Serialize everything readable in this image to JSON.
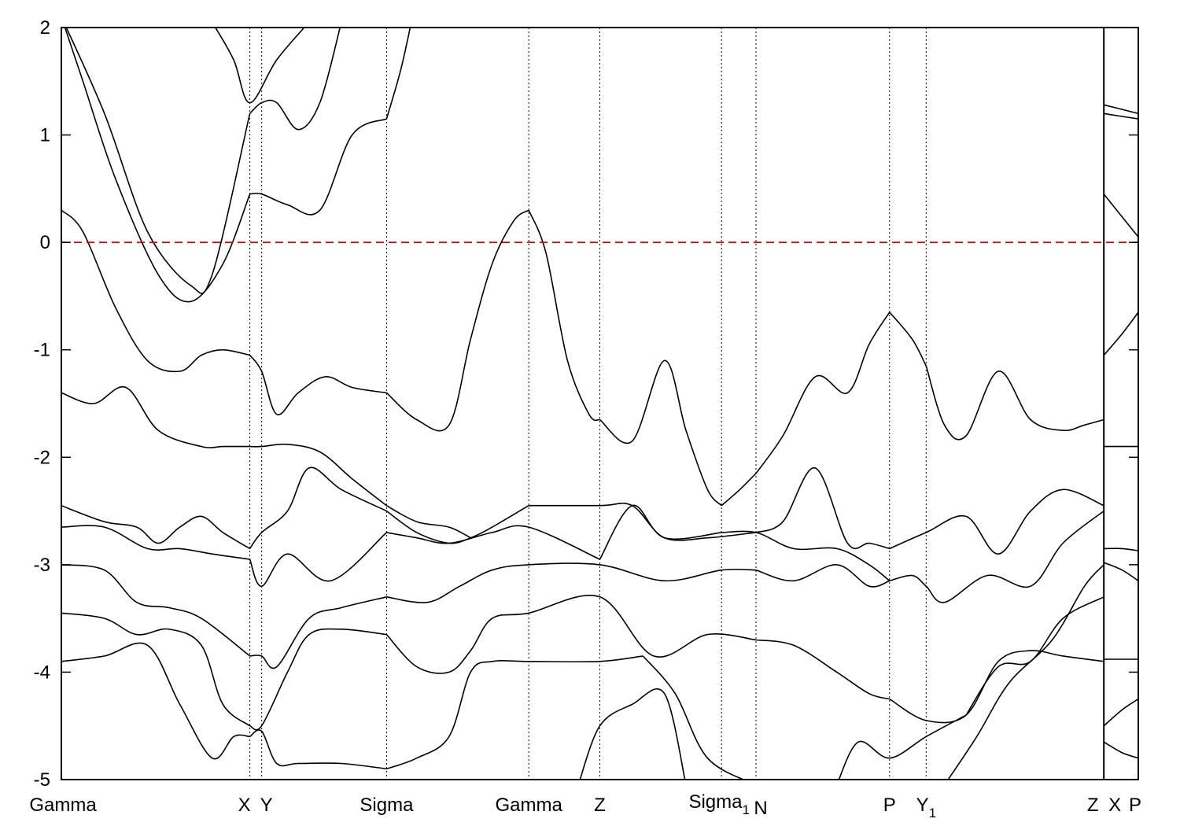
{
  "chart_data": {
    "type": "line",
    "title": "",
    "xlabel": "",
    "ylabel": "",
    "ylim": [
      -5,
      2
    ],
    "xlim": [
      0,
      1
    ],
    "grid": false,
    "legend": "none",
    "y_ticks": [
      {
        "value": 2,
        "label": "2"
      },
      {
        "value": 1,
        "label": "1"
      },
      {
        "value": 0,
        "label": "0"
      },
      {
        "value": -1,
        "label": "-1"
      },
      {
        "value": -2,
        "label": "-2"
      },
      {
        "value": -3,
        "label": "-3"
      },
      {
        "value": -4,
        "label": "-4"
      },
      {
        "value": -5,
        "label": "-5"
      }
    ],
    "kpoints": [
      {
        "x": 0.0,
        "label": "Gamma",
        "sub": ""
      },
      {
        "x": 0.175,
        "label": "X",
        "sub": ""
      },
      {
        "x": 0.186,
        "label": "Y",
        "sub": ""
      },
      {
        "x": 0.302,
        "label": "Sigma",
        "sub": ""
      },
      {
        "x": 0.434,
        "label": "Gamma",
        "sub": ""
      },
      {
        "x": 0.5,
        "label": "Z",
        "sub": ""
      },
      {
        "x": 0.613,
        "label": "Sigma",
        "sub": "1"
      },
      {
        "x": 0.645,
        "label": "N",
        "sub": ""
      },
      {
        "x": 0.769,
        "label": "P",
        "sub": ""
      },
      {
        "x": 0.803,
        "label": "Y",
        "sub": "1"
      },
      {
        "x": 0.968,
        "label": "Z",
        "sub": ""
      },
      {
        "x": 0.968,
        "label": "X",
        "sub": ""
      },
      {
        "x": 1.0,
        "label": "P",
        "sub": ""
      }
    ],
    "fermi_level": 0,
    "colors": {
      "bands": "#000000",
      "fermi": "#e00000",
      "kpoint_lines": "#000000"
    },
    "series": [
      {
        "x": [
          0,
          0.02,
          0.05,
          0.09,
          0.12,
          0.15,
          0.175
        ],
        "y": [
          2.1,
          1.5,
          0.6,
          -0.3,
          -0.55,
          -0.2,
          0.45
        ]
      },
      {
        "x": [
          0.175,
          0.186,
          0.21,
          0.24,
          0.27,
          0.302
        ],
        "y": [
          0.45,
          0.45,
          0.35,
          0.3,
          1.0,
          1.15
        ]
      },
      {
        "x": [
          0,
          0.04,
          0.08,
          0.12,
          0.14,
          0.175
        ],
        "y": [
          2.1,
          1.2,
          0.1,
          -0.4,
          -0.3,
          1.2
        ]
      },
      {
        "x": [
          0.175,
          0.186,
          0.2,
          0.22,
          0.24,
          0.26
        ],
        "y": [
          1.2,
          1.3,
          1.3,
          1.05,
          1.3,
          2.05
        ]
      },
      {
        "x": [
          0.14,
          0.16,
          0.175,
          0.2,
          0.23
        ],
        "y": [
          2.05,
          1.7,
          1.3,
          1.7,
          2.05
        ]
      },
      {
        "x": [
          0.302,
          0.315,
          0.325
        ],
        "y": [
          1.15,
          1.6,
          2.05
        ]
      },
      {
        "x": [
          0,
          0.02,
          0.05,
          0.08,
          0.11,
          0.13,
          0.15,
          0.175
        ],
        "y": [
          0.3,
          0.1,
          -0.6,
          -1.1,
          -1.2,
          -1.05,
          -1.0,
          -1.05
        ]
      },
      {
        "x": [
          0.175,
          0.186,
          0.2,
          0.22,
          0.245,
          0.27,
          0.302
        ],
        "y": [
          -1.05,
          -1.2,
          -1.6,
          -1.4,
          -1.25,
          -1.35,
          -1.4
        ]
      },
      {
        "x": [
          0.302,
          0.33,
          0.36,
          0.38,
          0.4,
          0.42,
          0.434
        ],
        "y": [
          -1.4,
          -1.65,
          -1.7,
          -0.9,
          -0.2,
          0.2,
          0.3
        ]
      },
      {
        "x": [
          0.434,
          0.45,
          0.47,
          0.49,
          0.5
        ],
        "y": [
          0.3,
          -0.1,
          -1.1,
          -1.6,
          -1.65
        ]
      },
      {
        "x": [
          0.5,
          0.53,
          0.56,
          0.58,
          0.6,
          0.613
        ],
        "y": [
          -1.65,
          -1.85,
          -1.1,
          -1.75,
          -2.3,
          -2.45
        ]
      },
      {
        "x": [
          0.613,
          0.63,
          0.645
        ],
        "y": [
          -2.45,
          -2.3,
          -2.15
        ]
      },
      {
        "x": [
          0.645,
          0.67,
          0.7,
          0.73,
          0.75,
          0.769
        ],
        "y": [
          -2.15,
          -1.8,
          -1.25,
          -1.4,
          -0.95,
          -0.65
        ]
      },
      {
        "x": [
          0.769,
          0.79,
          0.803
        ],
        "y": [
          -0.65,
          -0.9,
          -1.15
        ]
      },
      {
        "x": [
          0.803,
          0.82,
          0.84,
          0.87,
          0.9,
          0.93,
          0.95,
          0.968
        ],
        "y": [
          -1.15,
          -1.7,
          -1.8,
          -1.2,
          -1.65,
          -1.75,
          -1.7,
          -1.65
        ]
      },
      {
        "x": [
          0,
          0.03,
          0.06,
          0.09,
          0.13,
          0.15,
          0.175
        ],
        "y": [
          -1.4,
          -1.5,
          -1.35,
          -1.75,
          -1.9,
          -1.9,
          -1.9
        ]
      },
      {
        "x": [
          0.175,
          0.186,
          0.21,
          0.24,
          0.27,
          0.302
        ],
        "y": [
          -1.9,
          -1.9,
          -1.88,
          -1.95,
          -2.2,
          -2.45
        ]
      },
      {
        "x": [
          0.302,
          0.33,
          0.36,
          0.38
        ],
        "y": [
          -2.45,
          -2.6,
          -2.65,
          -2.75
        ]
      },
      {
        "x": [
          0,
          0.04,
          0.07,
          0.09,
          0.11,
          0.13,
          0.15,
          0.175
        ],
        "y": [
          -2.45,
          -2.6,
          -2.65,
          -2.8,
          -2.65,
          -2.55,
          -2.7,
          -2.85
        ]
      },
      {
        "x": [
          0.175,
          0.186,
          0.21,
          0.23,
          0.26,
          0.302
        ],
        "y": [
          -2.85,
          -2.7,
          -2.5,
          -2.1,
          -2.3,
          -2.5
        ]
      },
      {
        "x": [
          0.302,
          0.33,
          0.36,
          0.38,
          0.4,
          0.434
        ],
        "y": [
          -2.5,
          -2.7,
          -2.8,
          -2.75,
          -2.65,
          -2.45
        ]
      },
      {
        "x": [
          0.434,
          0.5,
          0.53,
          0.56,
          0.6,
          0.645
        ],
        "y": [
          -2.45,
          -2.45,
          -2.45,
          -2.75,
          -2.75,
          -2.7
        ]
      },
      {
        "x": [
          0.645,
          0.67,
          0.7,
          0.73,
          0.75,
          0.769
        ],
        "y": [
          -2.7,
          -2.6,
          -2.1,
          -2.8,
          -2.8,
          -2.85
        ]
      },
      {
        "x": [
          0.769,
          0.803,
          0.84,
          0.87,
          0.9,
          0.93,
          0.968
        ],
        "y": [
          -2.85,
          -2.7,
          -2.55,
          -2.9,
          -2.5,
          -2.3,
          -2.45
        ]
      },
      {
        "x": [
          0,
          0.04,
          0.08,
          0.11,
          0.14,
          0.175
        ],
        "y": [
          -2.65,
          -2.65,
          -2.85,
          -2.85,
          -2.9,
          -2.95
        ]
      },
      {
        "x": [
          0.175,
          0.186,
          0.21,
          0.25,
          0.302
        ],
        "y": [
          -2.95,
          -3.2,
          -2.9,
          -3.15,
          -2.7
        ]
      },
      {
        "x": [
          0.302,
          0.33,
          0.36,
          0.4,
          0.434,
          0.5
        ],
        "y": [
          -2.7,
          -2.75,
          -2.8,
          -2.7,
          -2.65,
          -2.95
        ]
      },
      {
        "x": [
          0.5,
          0.53,
          0.56,
          0.613
        ],
        "y": [
          -2.95,
          -2.45,
          -2.75,
          -2.7
        ]
      },
      {
        "x": [
          0.613,
          0.645,
          0.68,
          0.72,
          0.75,
          0.769
        ],
        "y": [
          -2.7,
          -2.7,
          -2.85,
          -2.85,
          -3.0,
          -3.15
        ]
      },
      {
        "x": [
          0.769,
          0.79,
          0.803,
          0.82,
          0.86,
          0.9,
          0.93,
          0.968
        ],
        "y": [
          -3.15,
          -3.1,
          -3.2,
          -3.35,
          -3.1,
          -3.2,
          -2.8,
          -2.5
        ]
      },
      {
        "x": [
          0,
          0.04,
          0.07,
          0.1,
          0.13,
          0.175
        ],
        "y": [
          -3.0,
          -3.05,
          -3.35,
          -3.4,
          -3.5,
          -3.85
        ]
      },
      {
        "x": [
          0.175,
          0.186,
          0.2,
          0.23,
          0.26,
          0.302
        ],
        "y": [
          -3.85,
          -3.85,
          -3.95,
          -3.5,
          -3.4,
          -3.3
        ]
      },
      {
        "x": [
          0.302,
          0.34,
          0.37,
          0.4,
          0.434,
          0.5,
          0.56,
          0.613,
          0.645
        ],
        "y": [
          -3.3,
          -3.35,
          -3.2,
          -3.05,
          -3.0,
          -3.0,
          -3.15,
          -3.05,
          -3.05
        ]
      },
      {
        "x": [
          0.645,
          0.68,
          0.72,
          0.75,
          0.769
        ],
        "y": [
          -3.05,
          -3.15,
          -3.0,
          -3.2,
          -3.15
        ]
      },
      {
        "x": [
          0,
          0.04,
          0.07,
          0.1,
          0.13,
          0.15,
          0.175
        ],
        "y": [
          -3.45,
          -3.5,
          -3.65,
          -3.6,
          -3.75,
          -4.3,
          -4.5
        ]
      },
      {
        "x": [
          0.175,
          0.186,
          0.21,
          0.23,
          0.26,
          0.302
        ],
        "y": [
          -4.5,
          -4.5,
          -4.0,
          -3.65,
          -3.6,
          -3.65
        ]
      },
      {
        "x": [
          0.302,
          0.33,
          0.36,
          0.38,
          0.4,
          0.434,
          0.5,
          0.55,
          0.6,
          0.645
        ],
        "y": [
          -3.65,
          -3.95,
          -4.0,
          -3.8,
          -3.5,
          -3.45,
          -3.3,
          -3.85,
          -3.65,
          -3.7
        ]
      },
      {
        "x": [
          0.645,
          0.68,
          0.72,
          0.75,
          0.769
        ],
        "y": [
          -3.7,
          -3.75,
          -4.0,
          -4.2,
          -4.25
        ]
      },
      {
        "x": [
          0.769,
          0.803,
          0.84,
          0.87,
          0.9,
          0.93,
          0.968
        ],
        "y": [
          -4.25,
          -4.45,
          -4.4,
          -3.9,
          -3.8,
          -3.85,
          -3.9
        ]
      },
      {
        "x": [
          0,
          0.04,
          0.08,
          0.11,
          0.14,
          0.16,
          0.175
        ],
        "y": [
          -3.9,
          -3.85,
          -3.75,
          -4.3,
          -4.8,
          -4.6,
          -4.6
        ]
      },
      {
        "x": [
          0.175,
          0.186,
          0.2,
          0.22,
          0.26,
          0.302
        ],
        "y": [
          -4.6,
          -4.55,
          -4.85,
          -4.85,
          -4.85,
          -4.9
        ]
      },
      {
        "x": [
          0.302,
          0.33,
          0.36,
          0.38,
          0.4,
          0.434,
          0.5,
          0.54
        ],
        "y": [
          -4.9,
          -4.8,
          -4.6,
          -4.0,
          -3.9,
          -3.9,
          -3.9,
          -3.85
        ]
      },
      {
        "x": [
          0.54,
          0.57,
          0.6,
          0.645
        ],
        "y": [
          -3.85,
          -4.2,
          -4.8,
          -5.05
        ]
      },
      {
        "x": [
          0.48,
          0.5,
          0.53,
          0.56,
          0.58
        ],
        "y": [
          -5.05,
          -4.5,
          -4.3,
          -4.2,
          -5.05
        ]
      },
      {
        "x": [
          0.72,
          0.74,
          0.769,
          0.803,
          0.84
        ],
        "y": [
          -5.05,
          -4.65,
          -4.8,
          -4.6,
          -4.4
        ]
      },
      {
        "x": [
          0.84,
          0.87,
          0.9,
          0.93,
          0.968
        ],
        "y": [
          -4.4,
          -3.95,
          -3.9,
          -3.5,
          -3.3
        ]
      },
      {
        "x": [
          0.82,
          0.85,
          0.88,
          0.92,
          0.95,
          0.968
        ],
        "y": [
          -5.05,
          -4.6,
          -4.1,
          -3.7,
          -3.2,
          -3.0
        ]
      },
      {
        "x": [
          0.968,
          0.98,
          1.0
        ],
        "y": [
          0.45,
          0.3,
          0.05
        ]
      },
      {
        "x": [
          0.968,
          0.98,
          1.0
        ],
        "y": [
          1.2,
          1.18,
          1.15
        ]
      },
      {
        "x": [
          0.968,
          0.98,
          1.0
        ],
        "y": [
          1.28,
          1.25,
          1.2
        ]
      },
      {
        "x": [
          0.968,
          0.985,
          1.0
        ],
        "y": [
          -1.05,
          -0.85,
          -0.65
        ]
      },
      {
        "x": [
          0.968,
          0.985,
          1.0
        ],
        "y": [
          -1.9,
          -1.9,
          -1.9
        ]
      },
      {
        "x": [
          0.968,
          0.985,
          1.0
        ],
        "y": [
          -2.85,
          -2.85,
          -2.87
        ]
      },
      {
        "x": [
          0.968,
          0.985,
          1.0
        ],
        "y": [
          -2.98,
          -3.05,
          -3.15
        ]
      },
      {
        "x": [
          0.968,
          0.985,
          1.0
        ],
        "y": [
          -3.88,
          -3.88,
          -3.88
        ]
      },
      {
        "x": [
          0.968,
          0.985,
          1.0
        ],
        "y": [
          -4.5,
          -4.35,
          -4.25
        ]
      },
      {
        "x": [
          0.968,
          0.985,
          1.0
        ],
        "y": [
          -4.65,
          -4.75,
          -4.8
        ]
      }
    ]
  }
}
